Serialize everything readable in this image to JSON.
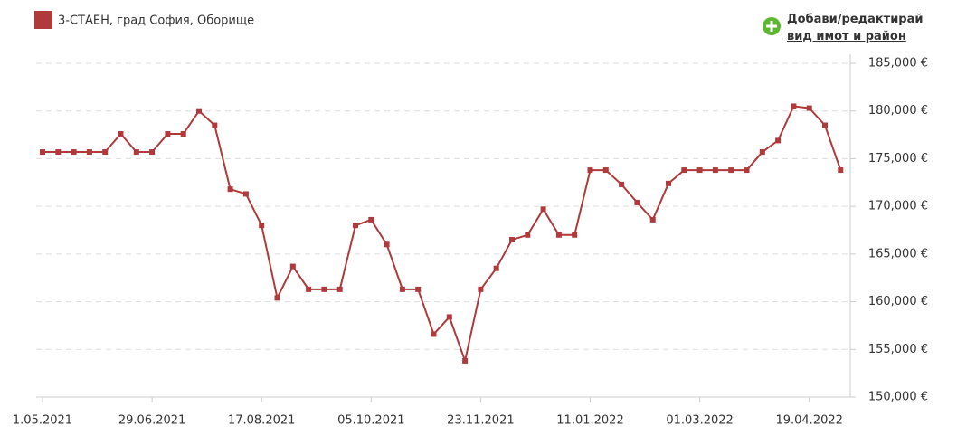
{
  "chart_data": {
    "type": "line",
    "categories": [
      "1.05.2021",
      null,
      null,
      null,
      null,
      null,
      null,
      "29.06.2021",
      null,
      null,
      null,
      null,
      null,
      null,
      "17.08.2021",
      null,
      null,
      null,
      null,
      null,
      null,
      "05.10.2021",
      null,
      null,
      null,
      null,
      null,
      null,
      "23.11.2021",
      null,
      null,
      null,
      null,
      null,
      null,
      "11.01.2022",
      null,
      null,
      null,
      null,
      null,
      null,
      "01.03.2022",
      null,
      null,
      null,
      null,
      null,
      null,
      "19.04.2022",
      null,
      null
    ],
    "series": [
      {
        "name": "3-СТАЕН, град София, Оборище",
        "color": "#b0393b",
        "values": [
          175700,
          175700,
          175700,
          175700,
          175700,
          177600,
          175700,
          175700,
          177600,
          177600,
          180000,
          178500,
          171800,
          171300,
          168000,
          160400,
          163700,
          161300,
          161300,
          161300,
          168000,
          168600,
          166000,
          161300,
          161300,
          156600,
          158400,
          153800,
          161300,
          163500,
          166500,
          167000,
          169700,
          167000,
          167000,
          173800,
          173800,
          172300,
          170400,
          168600,
          172400,
          173800,
          173800,
          173800,
          173800,
          173800,
          175700,
          176900,
          180500,
          180300,
          178500,
          173800
        ]
      }
    ],
    "ylim": [
      150000,
      185000
    ],
    "yticks": [
      {
        "value": 150000,
        "label": "150,000 €"
      },
      {
        "value": 155000,
        "label": "155,000 €"
      },
      {
        "value": 160000,
        "label": "160,000 €"
      },
      {
        "value": 165000,
        "label": "165,000 €"
      },
      {
        "value": 170000,
        "label": "170,000 €"
      },
      {
        "value": 175000,
        "label": "175,000 €"
      },
      {
        "value": 180000,
        "label": "180,000 €"
      },
      {
        "value": 185000,
        "label": "185,000 €"
      }
    ],
    "grid": true,
    "legend": "top-left"
  },
  "add_link": {
    "lines": [
      "Добави/редактирай",
      "вид имот и район"
    ]
  }
}
